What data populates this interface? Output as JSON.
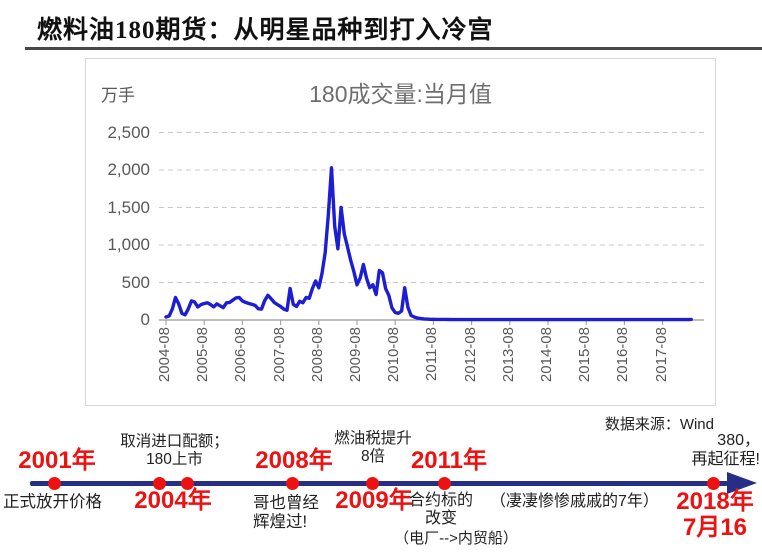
{
  "page": {
    "title": "燃料油180期货：从明星品种到打入冷宫"
  },
  "chart": {
    "unit_label": "万手",
    "title": "180成交量:当月值",
    "source_note": "数据来源：Wind",
    "line_color": "#1d1dd2",
    "grid_color": "#c9c9c9",
    "axis_color": "#a8a8a8",
    "tick_label_color": "#595959"
  },
  "chart_data": {
    "type": "line",
    "title": "180成交量:当月值",
    "ylabel": "万手",
    "ylim": [
      0,
      2500
    ],
    "yticks": [
      0,
      500,
      1000,
      1500,
      2000,
      2500
    ],
    "ytick_labels": [
      "0",
      "500",
      "1,000",
      "1,500",
      "2,000",
      "2,500"
    ],
    "xtick_labels": [
      "2004-08",
      "2005-08",
      "2006-08",
      "2007-08",
      "2008-08",
      "2009-08",
      "2010-08",
      "2011-08",
      "2012-08",
      "2013-08",
      "2014-08",
      "2015-08",
      "2016-08",
      "2017-08"
    ],
    "x_start_month": "2004-08",
    "x_end_month": "2018-05",
    "grid": "dashed-horizontal",
    "legend": "none",
    "series": [
      {
        "name": "180成交量:当月值",
        "values": [
          40,
          55,
          150,
          300,
          215,
          90,
          70,
          150,
          255,
          240,
          175,
          205,
          220,
          230,
          205,
          175,
          215,
          190,
          165,
          230,
          235,
          265,
          295,
          300,
          255,
          235,
          220,
          210,
          195,
          150,
          145,
          260,
          330,
          285,
          235,
          205,
          180,
          145,
          130,
          420,
          210,
          180,
          250,
          230,
          300,
          290,
          420,
          520,
          430,
          620,
          900,
          1400,
          2030,
          1250,
          950,
          1500,
          1150,
          980,
          800,
          650,
          470,
          560,
          740,
          560,
          430,
          470,
          340,
          660,
          630,
          420,
          330,
          160,
          100,
          90,
          120,
          430,
          170,
          60,
          40,
          25,
          20,
          15,
          12,
          10,
          10,
          8,
          8,
          8,
          8,
          7,
          6,
          6,
          6,
          6,
          6,
          6,
          6,
          6,
          6,
          6,
          6,
          6,
          6,
          6,
          6,
          6,
          6,
          6,
          6,
          6,
          6,
          6,
          6,
          5,
          5,
          5,
          5,
          5,
          5,
          5,
          5,
          5,
          5,
          5,
          5,
          5,
          5,
          5,
          5,
          5,
          5,
          5,
          5,
          5,
          5,
          5,
          5,
          5,
          5,
          5,
          5,
          5,
          5,
          5,
          5,
          5,
          5,
          5,
          5,
          5,
          5,
          5,
          5,
          5,
          5,
          5,
          5,
          5,
          5,
          5,
          5,
          5,
          5,
          5,
          5,
          8
        ]
      }
    ]
  },
  "timeline": {
    "line_color": "#272e87",
    "dot_color": "#ee1111",
    "year_color": "#ee1111",
    "events": [
      {
        "year": "2001年",
        "lines": [
          "正式放开价格"
        ]
      },
      {
        "year": "2004年",
        "lines": [
          "取消进口配额；",
          "180上市"
        ]
      },
      {
        "year": "2008年",
        "lines": [
          "哥也曾经",
          "辉煌过!"
        ]
      },
      {
        "year": "2009年",
        "lines": [
          "燃油税提升",
          "8倍"
        ]
      },
      {
        "year": "2011年",
        "lines": [
          "合约标的",
          "改变",
          "（电厂-->内贸船）"
        ]
      },
      {
        "label": "（凄凄惨惨戚戚的7年）"
      },
      {
        "year_lines": [
          "2018年",
          "7月16"
        ],
        "lines": [
          "380，",
          "再起征程!"
        ]
      }
    ]
  }
}
